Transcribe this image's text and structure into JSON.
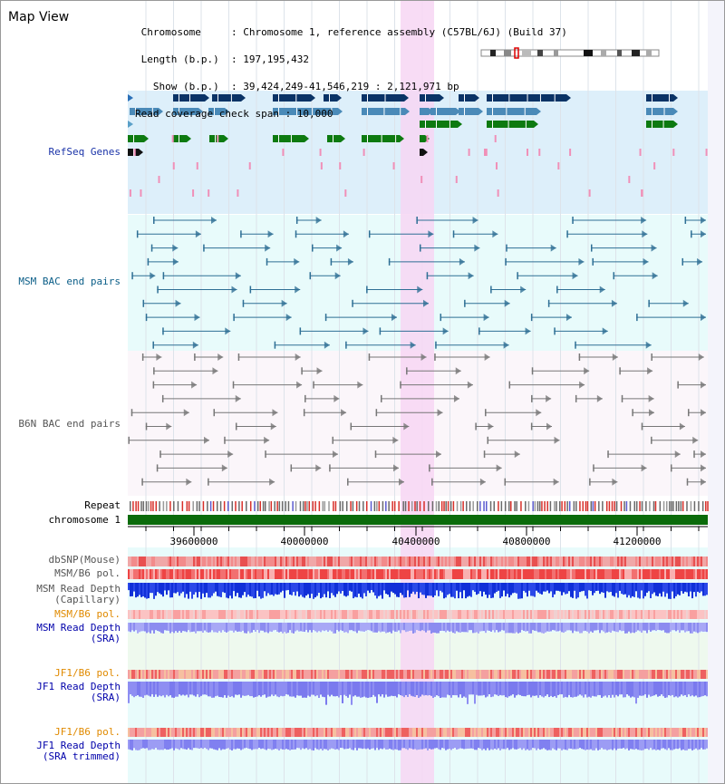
{
  "view": {
    "title": "Map View",
    "info_lines": [
      " Chromosome     : Chromosome 1, reference assembly (C57BL/6J) (Build 37)",
      " Length (b.p.)  : 197,195,432",
      "   Show (b.p.)  : 39,424,249-41,546,219 : 2,121,971 bp",
      "Read coverage check span : 10,000"
    ]
  },
  "tracks": {
    "refseq": "RefSeq Genes",
    "msm_bac": "MSM BAC end pairs",
    "b6n_bac": "B6N BAC end pairs",
    "repeat": "Repeat",
    "chromosome": "chromosome 1",
    "dbsnp": "dbSNP(Mouse)",
    "msm_b6_pol": "MSM/B6 pol.",
    "msm_depth_cap": "MSM Read Depth\n(Capillary)",
    "msm_b6_pol2": "MSM/B6 pol.",
    "msm_depth_sra": "MSM Read Depth\n(SRA)",
    "jf1_b6_pol": "JF1/B6 pol.",
    "jf1_depth_sra": "JF1 Read Depth\n(SRA)",
    "jf1_b6_pol2": "JF1/B6 pol.",
    "jf1_depth_trim": "JF1 Read Depth\n(SRA trimmed)"
  },
  "axis": {
    "ticks": [
      "39600000",
      "40000000",
      "40400000",
      "40800000",
      "41200000"
    ]
  },
  "colors": {
    "refseq_bg": "#ddeffa",
    "bac_bg": "#e8fbfb",
    "highlight": "#f7d6f3",
    "gene_dark": "#0a3366",
    "gene_mid": "#4a8ab8",
    "gene_green": "#0d7a10",
    "chromosome_bar": "#0b6b0b"
  }
}
